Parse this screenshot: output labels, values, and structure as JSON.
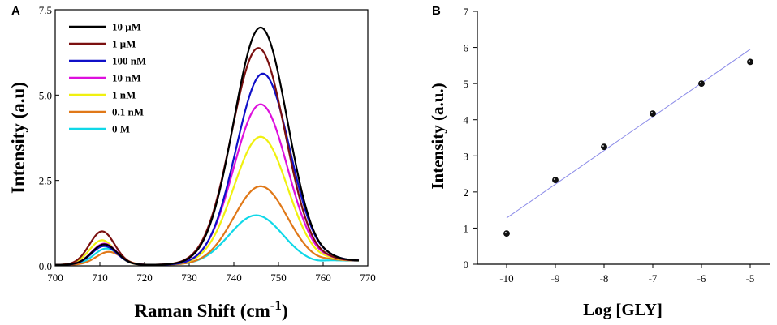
{
  "chart_data": [
    {
      "panel_label": "A",
      "type": "line",
      "xlabel_main": "Raman Shift (cm",
      "xlabel_sup": "-1",
      "xlabel_close": ")",
      "ylabel": "Intensity (a.u)",
      "xlim": [
        700,
        770
      ],
      "ylim": [
        0,
        7.5
      ],
      "xticks": [
        "700",
        "710",
        "720",
        "730",
        "740",
        "750",
        "760",
        "770"
      ],
      "yticks": [
        "0.0",
        "2.5",
        "5.0",
        "7.5"
      ],
      "legend_position": "top-left",
      "series": [
        {
          "name": "10 μM",
          "color": "#000000",
          "peak1_height": 0.6,
          "peak1_center": 711,
          "peak2_height": 6.95,
          "peak2_center": 746
        },
        {
          "name": "1 μM",
          "color": "#7b1010",
          "peak1_height": 0.98,
          "peak1_center": 710.5,
          "peak2_height": 6.35,
          "peak2_center": 745.5
        },
        {
          "name": "100 nM",
          "color": "#1010c8",
          "peak1_height": 0.55,
          "peak1_center": 711,
          "peak2_height": 5.6,
          "peak2_center": 746.5
        },
        {
          "name": "10 nM",
          "color": "#dd10dd",
          "peak1_height": 0.62,
          "peak1_center": 711,
          "peak2_height": 4.7,
          "peak2_center": 746
        },
        {
          "name": "1 nM",
          "color": "#f0f010",
          "peak1_height": 0.72,
          "peak1_center": 710.5,
          "peak2_height": 3.75,
          "peak2_center": 746
        },
        {
          "name": "0.1 nM",
          "color": "#e07818",
          "peak1_height": 0.38,
          "peak1_center": 712,
          "peak2_height": 2.3,
          "peak2_center": 746
        },
        {
          "name": "0 M",
          "color": "#10d8e8",
          "peak1_height": 0.48,
          "peak1_center": 711.5,
          "peak2_height": 1.45,
          "peak2_center": 745
        }
      ]
    },
    {
      "panel_label": "B",
      "type": "scatter",
      "xlabel": "Log [GLY]",
      "ylabel": "Intensity (a.u.)",
      "xlim": [
        -10.6,
        -4.6
      ],
      "ylim": [
        0,
        7
      ],
      "xticks": [
        "-10",
        "-9",
        "-8",
        "-7",
        "-6",
        "-5"
      ],
      "yticks": [
        "0",
        "1",
        "2",
        "3",
        "4",
        "5",
        "6",
        "7"
      ],
      "x": [
        -10,
        -9,
        -8,
        -7,
        -6,
        -5
      ],
      "y": [
        0.85,
        2.33,
        3.25,
        4.17,
        5.0,
        5.6
      ],
      "fit_line": {
        "x": [
          -10,
          -5
        ],
        "y": [
          1.28,
          5.95
        ],
        "color": "#8a8ae8"
      }
    }
  ]
}
